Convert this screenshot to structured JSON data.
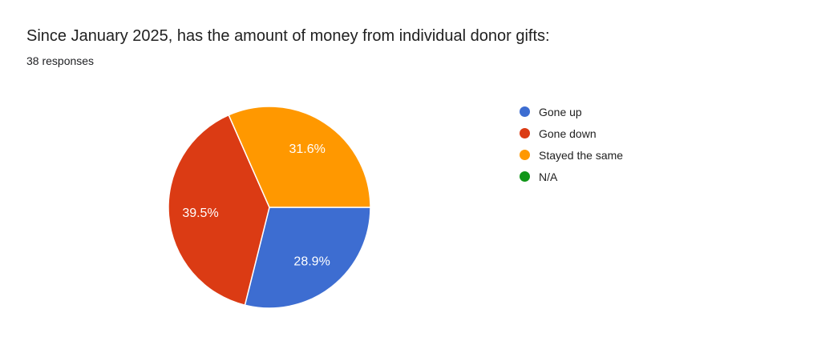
{
  "page": {
    "background_color": "#ffffff"
  },
  "header": {
    "title": "Since January 2025, has the amount of money from individual donor gifts:",
    "response_count": "38 responses"
  },
  "chart_data": {
    "type": "pie",
    "title": "Since January 2025, has the amount of money from individual donor gifts:",
    "subtitle": "38 responses",
    "total_responses": 38,
    "categories": [
      "Gone up",
      "Gone down",
      "Stayed the same",
      "N/A"
    ],
    "values": [
      28.9,
      39.5,
      31.6,
      0
    ],
    "unit": "percent",
    "data_labels": [
      "28.9%",
      "39.5%",
      "31.6%",
      ""
    ],
    "colors": [
      "#3D6DD1",
      "#DB3B14",
      "#FF9800",
      "#109618"
    ],
    "data_label_color": "#ffffff",
    "slice_border_color": "#ffffff",
    "legend_position": "right",
    "start_angle": "3-oclock",
    "direction": "clockwise"
  }
}
